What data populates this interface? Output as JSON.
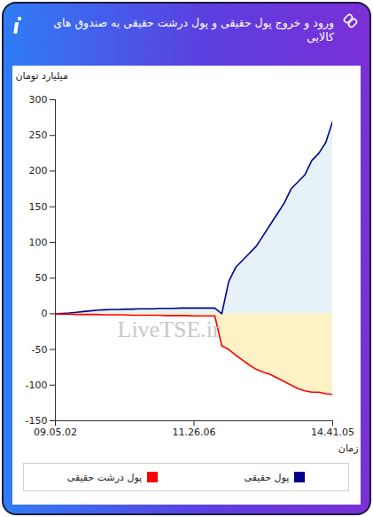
{
  "chart_data": {
    "type": "area",
    "title": "ورود و خروج پول حقیقی و پول درشت حقیقی به صندوق های کالایی",
    "x_label": "زمان",
    "y_label": "میلیارد تومان",
    "categories": [
      "09.05.02",
      null,
      null,
      null,
      null,
      null,
      null,
      null,
      null,
      null,
      null,
      null,
      null,
      null,
      null,
      null,
      null,
      null,
      null,
      null,
      "11.26.06",
      null,
      null,
      null,
      null,
      null,
      null,
      null,
      null,
      null,
      null,
      null,
      null,
      null,
      null,
      null,
      null,
      null,
      null,
      null,
      "14.41.05"
    ],
    "series": [
      {
        "name": "پول حقیقی",
        "color": "#00008b",
        "values": [
          0,
          0.5,
          1,
          2,
          3,
          4,
          5,
          5.5,
          6,
          6,
          6.5,
          6.5,
          7,
          7,
          7,
          7.5,
          7.5,
          7.5,
          8,
          8,
          8,
          8,
          8,
          8,
          0,
          45,
          65,
          75,
          85,
          95,
          110,
          125,
          140,
          155,
          175,
          185,
          195,
          215,
          225,
          240,
          270
        ]
      },
      {
        "name": "پول درشت حقیقی",
        "color": "#ff0000",
        "values": [
          0,
          -0.5,
          -0.5,
          -1,
          -1,
          -1,
          -1,
          -1.5,
          -1.5,
          -1.5,
          -1.5,
          -2,
          -2,
          -2,
          -2,
          -2,
          -2.5,
          -2.5,
          -2.5,
          -2.5,
          -3,
          -3,
          -3,
          -3,
          -45,
          -50,
          -58,
          -65,
          -72,
          -78,
          -82,
          -85,
          -90,
          -95,
          -100,
          -105,
          -108,
          -110,
          -110,
          -112,
          -113
        ]
      }
    ],
    "ylim": [
      -150,
      300
    ],
    "yticks": [
      -150,
      -100,
      -50,
      0,
      50,
      100,
      150,
      200,
      250,
      300
    ],
    "grid": false,
    "legend": "bottom",
    "annotations": [
      "LiveTSE.ir"
    ]
  }
}
